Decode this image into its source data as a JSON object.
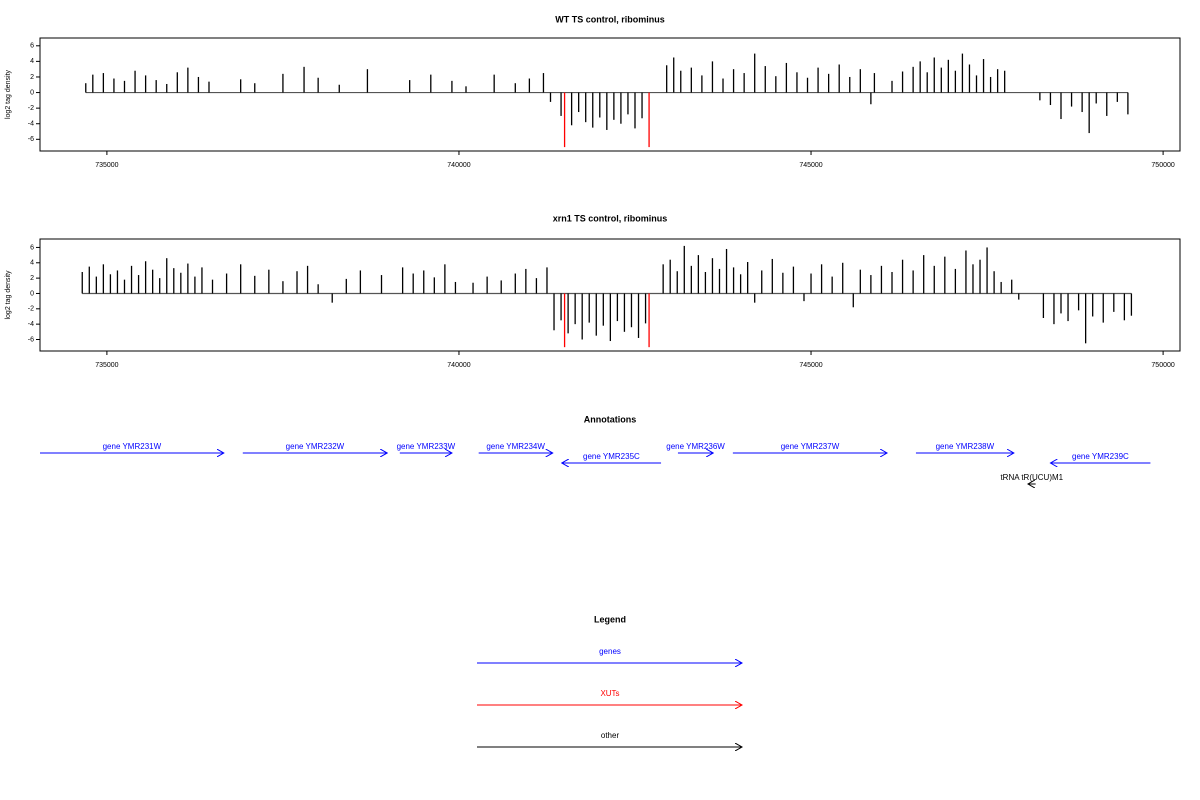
{
  "chart_data": [
    {
      "type": "bar",
      "title": "WT TS control, ribominus",
      "ylabel": "log2 tag density",
      "xlim": [
        734050,
        750240
      ],
      "xticks": [
        735000,
        740000,
        745000,
        750000
      ],
      "ylim": [
        -7.5,
        7.0
      ],
      "yticks": [
        -6,
        -4,
        -2,
        0,
        2,
        4,
        6
      ],
      "series": [
        {
          "color": "#000000",
          "x": [
            734700,
            734800,
            734950,
            735100,
            735250,
            735400,
            735550,
            735700,
            735850,
            736000,
            736150,
            736300,
            736450,
            736900,
            737100,
            737500,
            737800,
            738000,
            738300,
            738700,
            739300,
            739600,
            739900,
            740100,
            740500,
            740800,
            741000,
            741200,
            741300,
            741450,
            741600,
            741700,
            741800,
            741900,
            742000,
            742100,
            742200,
            742300,
            742400,
            742500,
            742600,
            742950,
            743050,
            743150,
            743300,
            743450,
            743600,
            743750,
            743900,
            744050,
            744200,
            744350,
            744500,
            744650,
            744800,
            744950,
            745100,
            745250,
            745400,
            745550,
            745700,
            745850,
            745900,
            746150,
            746300,
            746450,
            746550,
            746650,
            746750,
            746850,
            746950,
            747050,
            747150,
            747250,
            747350,
            747450,
            747550,
            747650,
            747750,
            748250,
            748400,
            748550,
            748700,
            748850,
            748950,
            749050,
            749200,
            749350,
            749500
          ],
          "values": [
            1.2,
            2.3,
            2.5,
            1.8,
            1.5,
            2.8,
            2.2,
            1.6,
            1.1,
            2.6,
            3.2,
            2.0,
            1.4,
            1.7,
            1.2,
            2.4,
            3.3,
            1.9,
            1.0,
            3.0,
            1.6,
            2.3,
            1.5,
            0.8,
            2.3,
            1.2,
            1.8,
            2.5,
            -1.2,
            -3.0,
            -4.2,
            -2.5,
            -3.8,
            -4.5,
            -3.2,
            -4.8,
            -3.5,
            -4.0,
            -2.8,
            -4.6,
            -3.3,
            3.5,
            4.5,
            2.8,
            3.2,
            2.2,
            4.0,
            1.8,
            3.0,
            2.5,
            5.0,
            3.4,
            2.1,
            3.8,
            2.6,
            1.9,
            3.2,
            2.4,
            3.6,
            2.0,
            3.0,
            -1.5,
            2.5,
            1.5,
            2.7,
            3.3,
            4.0,
            2.6,
            4.5,
            3.2,
            4.2,
            2.8,
            5.0,
            3.6,
            2.2,
            4.3,
            2.0,
            3.0,
            2.8,
            -1.0,
            -1.6,
            -3.4,
            -1.8,
            -2.5,
            -5.2,
            -1.4,
            -3.0,
            -1.2,
            -2.8
          ]
        },
        {
          "color": "#ff0000",
          "x": [
            741500,
            742700
          ],
          "values": [
            -7.0,
            -7.0
          ]
        }
      ]
    },
    {
      "type": "bar",
      "title": "xrn1 TS control, ribominus",
      "ylabel": "log2 tag density",
      "xlim": [
        734050,
        750240
      ],
      "xticks": [
        735000,
        740000,
        745000,
        750000
      ],
      "ylim": [
        -7.5,
        7.1
      ],
      "yticks": [
        -6,
        -4,
        -2,
        0,
        2,
        4,
        6
      ],
      "series": [
        {
          "color": "#000000",
          "x": [
            734650,
            734750,
            734850,
            734950,
            735050,
            735150,
            735250,
            735350,
            735450,
            735550,
            735650,
            735750,
            735850,
            735950,
            736050,
            736150,
            736250,
            736350,
            736500,
            736700,
            736900,
            737100,
            737300,
            737500,
            737700,
            737850,
            738000,
            738200,
            738400,
            738600,
            738900,
            739200,
            739350,
            739500,
            739650,
            739800,
            739950,
            740200,
            740400,
            740600,
            740800,
            740950,
            741100,
            741250,
            741350,
            741450,
            741550,
            741650,
            741750,
            741850,
            741950,
            742050,
            742150,
            742250,
            742350,
            742450,
            742550,
            742650,
            742900,
            743000,
            743100,
            743200,
            743300,
            743400,
            743500,
            743600,
            743700,
            743800,
            743900,
            744000,
            744100,
            744200,
            744300,
            744450,
            744600,
            744750,
            744900,
            745000,
            745150,
            745300,
            745450,
            745600,
            745700,
            745850,
            746000,
            746150,
            746300,
            746450,
            746600,
            746750,
            746900,
            747050,
            747200,
            747300,
            747400,
            747500,
            747600,
            747700,
            747850,
            747950,
            748300,
            748450,
            748550,
            748650,
            748800,
            748900,
            749000,
            749150,
            749300,
            749450,
            749550
          ],
          "values": [
            2.8,
            3.5,
            2.2,
            3.8,
            2.5,
            3.0,
            1.8,
            3.6,
            2.4,
            4.2,
            3.1,
            2.0,
            4.6,
            3.3,
            2.7,
            3.9,
            2.2,
            3.4,
            1.8,
            2.6,
            3.8,
            2.3,
            3.1,
            1.6,
            2.9,
            3.6,
            1.2,
            -1.2,
            1.9,
            3.0,
            2.4,
            3.4,
            2.6,
            3.0,
            2.1,
            3.8,
            1.5,
            1.4,
            2.2,
            1.7,
            2.6,
            3.2,
            2.0,
            3.4,
            -4.8,
            -3.5,
            -5.2,
            -4.0,
            -6.0,
            -3.8,
            -5.5,
            -4.2,
            -6.2,
            -3.6,
            -5.0,
            -4.4,
            -5.8,
            -3.9,
            3.8,
            4.4,
            2.9,
            6.2,
            3.6,
            5.0,
            2.8,
            4.6,
            3.2,
            5.8,
            3.4,
            2.5,
            4.1,
            -1.2,
            3.0,
            4.5,
            2.7,
            3.5,
            -1.0,
            2.6,
            3.8,
            2.2,
            4.0,
            -1.8,
            3.1,
            2.4,
            3.6,
            2.8,
            4.4,
            3.0,
            5.0,
            3.6,
            4.8,
            3.2,
            5.6,
            3.8,
            4.4,
            6.0,
            2.9,
            1.5,
            1.8,
            -0.8,
            -3.2,
            -4.0,
            -2.6,
            -3.6,
            -2.2,
            -6.5,
            -3.0,
            -3.8,
            -2.4,
            -3.5,
            -2.9
          ]
        },
        {
          "color": "#ff0000",
          "x": [
            741500,
            742700
          ],
          "values": [
            -7.0,
            -7.0
          ]
        }
      ]
    }
  ],
  "annotations": {
    "title": "Annotations",
    "genes": [
      {
        "label": "gene YMR231W",
        "start": 734050,
        "end": 736660,
        "strand": "+",
        "color": "#0000ff"
      },
      {
        "label": "gene YMR232W",
        "start": 736930,
        "end": 738980,
        "strand": "+",
        "color": "#0000ff"
      },
      {
        "label": "gene YMR233W",
        "start": 739160,
        "end": 739900,
        "strand": "+",
        "color": "#0000ff"
      },
      {
        "label": "gene YMR234W",
        "start": 740280,
        "end": 741330,
        "strand": "+",
        "color": "#0000ff"
      },
      {
        "label": "gene YMR235C",
        "start": 741460,
        "end": 742870,
        "strand": "-",
        "color": "#0000ff"
      },
      {
        "label": "gene YMR236W",
        "start": 743110,
        "end": 743610,
        "strand": "+",
        "color": "#0000ff"
      },
      {
        "label": "gene YMR237W",
        "start": 743890,
        "end": 746080,
        "strand": "+",
        "color": "#0000ff"
      },
      {
        "label": "gene YMR238W",
        "start": 746490,
        "end": 747880,
        "strand": "+",
        "color": "#0000ff"
      },
      {
        "label": "gene YMR239C",
        "start": 748400,
        "end": 749820,
        "strand": "-",
        "color": "#0000ff"
      },
      {
        "label": "tRNA tR(UCU)M1",
        "start": 748080,
        "end": 748190,
        "strand": "-",
        "color": "#000000"
      }
    ]
  },
  "legend": {
    "title": "Legend",
    "items": [
      {
        "label": "genes",
        "color": "#0000ff"
      },
      {
        "label": "XUTs",
        "color": "#ff0000"
      },
      {
        "label": "other",
        "color": "#000000"
      }
    ]
  }
}
